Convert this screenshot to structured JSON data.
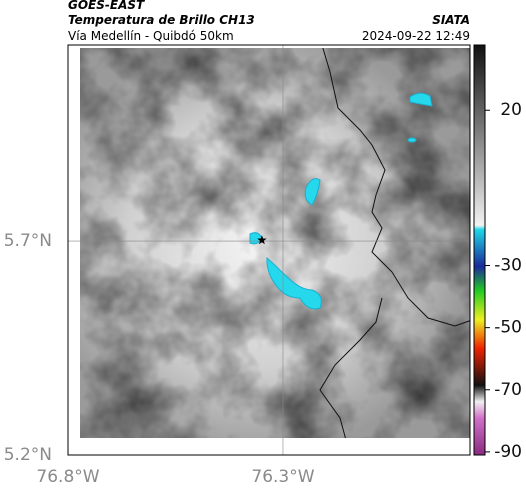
{
  "header": {
    "satellite": "GOES-EAST",
    "product": "Temperatura de Brillo CH13",
    "route": "Vía Medellín - Quibdó 50km",
    "source": "SIATA",
    "datetime": "2024-09-22 12:49"
  },
  "map": {
    "xlim": [
      -76.8,
      -75.865
    ],
    "ylim": [
      5.2,
      6.158
    ],
    "xticks": [
      {
        "value": -76.8,
        "label": "76.8°W"
      },
      {
        "value": -76.3,
        "label": "76.3°W"
      }
    ],
    "yticks": [
      {
        "value": 5.2,
        "label": "5.2°N"
      },
      {
        "value": 5.7,
        "label": "5.7°N"
      }
    ],
    "marker": {
      "lon": -76.349,
      "lat": 5.702
    }
  },
  "colorbar": {
    "lim": [
      41,
      -91
    ],
    "ticks": [
      20,
      -30,
      -50,
      -70,
      -90
    ]
  }
}
